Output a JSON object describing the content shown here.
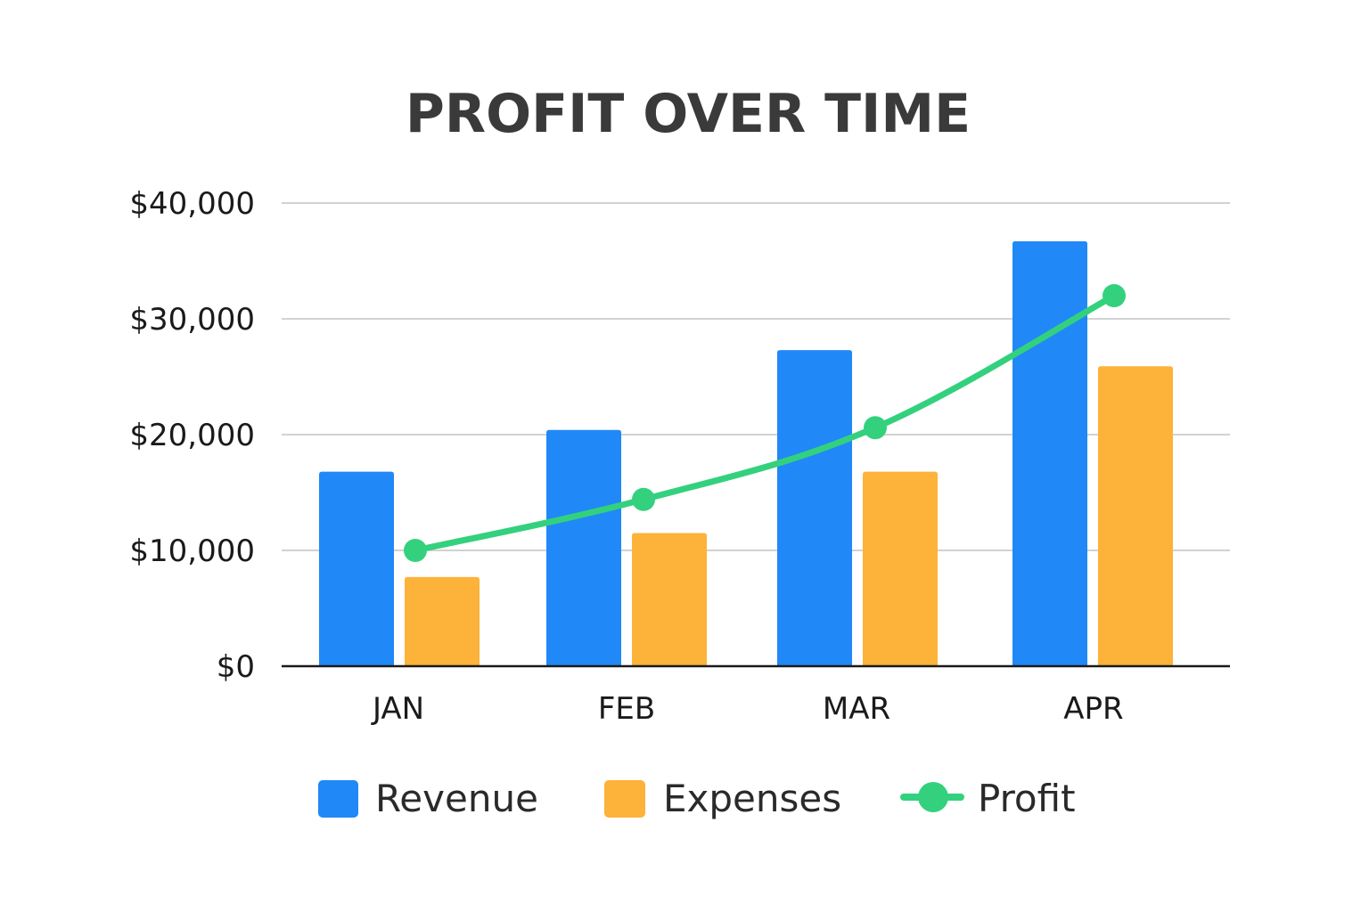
{
  "chart_data": {
    "type": "bar",
    "title": "PROFIT OVER TIME",
    "categories": [
      "JAN",
      "FEB",
      "MAR",
      "APR"
    ],
    "y_tick_labels": [
      "$0",
      "$10,000",
      "$20,000",
      "$30,000",
      "$40,000"
    ],
    "y_ticks": [
      0,
      10000,
      20000,
      30000,
      40000
    ],
    "ylim": [
      0,
      40000
    ],
    "grid": true,
    "legend_position": "bottom",
    "series": [
      {
        "name": "Revenue",
        "kind": "bar",
        "color": "#2188f7",
        "values": [
          16800,
          20400,
          27300,
          36700
        ]
      },
      {
        "name": "Expenses",
        "kind": "bar",
        "color": "#fdb23a",
        "values": [
          7700,
          11500,
          16800,
          25900
        ]
      },
      {
        "name": "Profit",
        "kind": "line",
        "color": "#33d17e",
        "values": [
          10000,
          14400,
          20600,
          32000
        ]
      }
    ]
  }
}
